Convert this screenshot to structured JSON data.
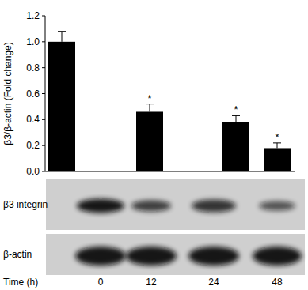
{
  "chart_data": {
    "type": "bar",
    "ylabel": "β3/β-actin (Fold change)",
    "xlabel": "Time (h)",
    "categories": [
      "0",
      "12",
      "24",
      "48"
    ],
    "values": [
      1.0,
      0.46,
      0.38,
      0.18
    ],
    "errors": [
      0.08,
      0.06,
      0.05,
      0.04
    ],
    "color": "#000000",
    "ylim": [
      0,
      1.2
    ],
    "yticks": [
      {
        "value": 0,
        "label": "0.0"
      },
      {
        "value": 0.2,
        "label": "0.2"
      },
      {
        "value": 0.4,
        "label": "0.4"
      },
      {
        "value": 0.6,
        "label": "0.6"
      },
      {
        "value": 0.8,
        "label": "0.8"
      },
      {
        "value": 1,
        "label": "1.0"
      },
      {
        "value": 1.2,
        "label": "1.2"
      }
    ],
    "annotations": [
      {
        "text": "*",
        "x": 1
      },
      {
        "text": "*",
        "x": 2
      },
      {
        "text": "*",
        "x": 3
      }
    ],
    "blots": [
      "β3 integrin",
      "β-actin"
    ]
  }
}
